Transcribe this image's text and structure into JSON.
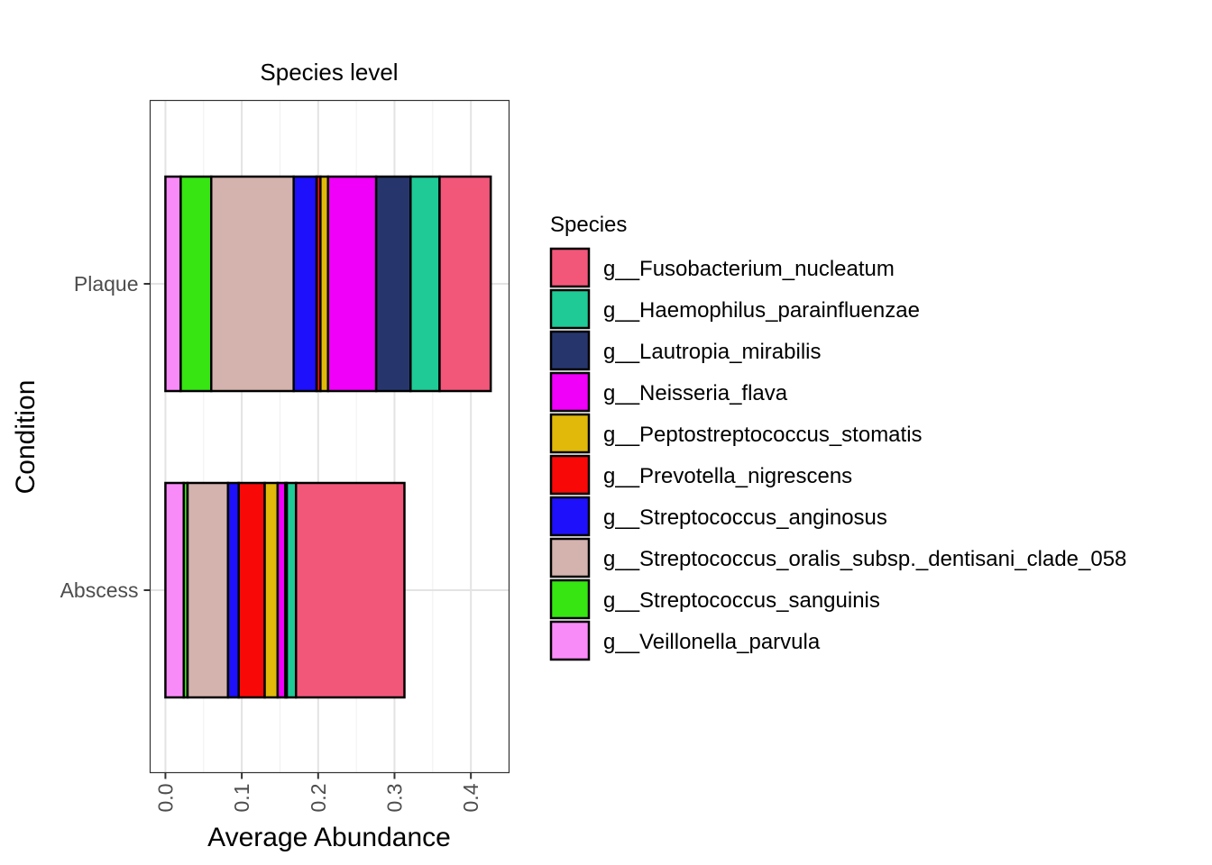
{
  "chart_data": {
    "type": "bar",
    "orientation": "horizontal",
    "stacked": true,
    "title": "Species level",
    "xlabel": "Average Abundance",
    "ylabel": "Condition",
    "xlim": [
      -0.02,
      0.45
    ],
    "xticks": [
      "0.0",
      "0.1",
      "0.2",
      "0.3",
      "0.4"
    ],
    "xtick_values": [
      0,
      0.1,
      0.2,
      0.3,
      0.4
    ],
    "categories": [
      "Plaque",
      "Abscess"
    ],
    "legend_title": "Species",
    "legend_position": "right",
    "grid": true,
    "bar_outline_color": "#000000",
    "stacks": [
      {
        "category": "Plaque",
        "segments": [
          {
            "species": "g__Veillonella_parvula",
            "value": 0.02
          },
          {
            "species": "g__Streptococcus_sanguinis",
            "value": 0.04
          },
          {
            "species": "g__Streptococcus_oralis_subsp._dentisani_clade_058",
            "value": 0.108
          },
          {
            "species": "g__Streptococcus_anginosus",
            "value": 0.03
          },
          {
            "species": "g__Prevotella_nigrescens",
            "value": 0.005
          },
          {
            "species": "g__Peptostreptococcus_stomatis",
            "value": 0.01
          },
          {
            "species": "g__Neisseria_flava",
            "value": 0.063
          },
          {
            "species": "g__Lautropia_mirabilis",
            "value": 0.045
          },
          {
            "species": "g__Haemophilus_parainfluenzae",
            "value": 0.038
          },
          {
            "species": "g__Fusobacterium_nucleatum",
            "value": 0.067
          }
        ]
      },
      {
        "category": "Abscess",
        "segments": [
          {
            "species": "g__Veillonella_parvula",
            "value": 0.024
          },
          {
            "species": "g__Streptococcus_sanguinis",
            "value": 0.005
          },
          {
            "species": "g__Streptococcus_oralis_subsp._dentisani_clade_058",
            "value": 0.053
          },
          {
            "species": "g__Streptococcus_anginosus",
            "value": 0.014
          },
          {
            "species": "g__Prevotella_nigrescens",
            "value": 0.034
          },
          {
            "species": "g__Peptostreptococcus_stomatis",
            "value": 0.017
          },
          {
            "species": "g__Neisseria_flava",
            "value": 0.01
          },
          {
            "species": "g__Lautropia_mirabilis",
            "value": 0.002
          },
          {
            "species": "g__Haemophilus_parainfluenzae",
            "value": 0.012
          },
          {
            "species": "g__Fusobacterium_nucleatum",
            "value": 0.142
          }
        ]
      }
    ],
    "legend": [
      {
        "label": "g__Fusobacterium_nucleatum",
        "color": "#F2577A"
      },
      {
        "label": "g__Haemophilus_parainfluenzae",
        "color": "#1FCA96"
      },
      {
        "label": "g__Lautropia_mirabilis",
        "color": "#26366D"
      },
      {
        "label": "g__Neisseria_flava",
        "color": "#F000F8"
      },
      {
        "label": "g__Peptostreptococcus_stomatis",
        "color": "#E0B90A"
      },
      {
        "label": "g__Prevotella_nigrescens",
        "color": "#F90808"
      },
      {
        "label": "g__Streptococcus_anginosus",
        "color": "#1E10FA"
      },
      {
        "label": "g__Streptococcus_oralis_subsp._dentisani_clade_058",
        "color": "#D4B2AD"
      },
      {
        "label": "g__Streptococcus_sanguinis",
        "color": "#36E512"
      },
      {
        "label": "g__Veillonella_parvula",
        "color": "#F98BF8"
      }
    ]
  }
}
